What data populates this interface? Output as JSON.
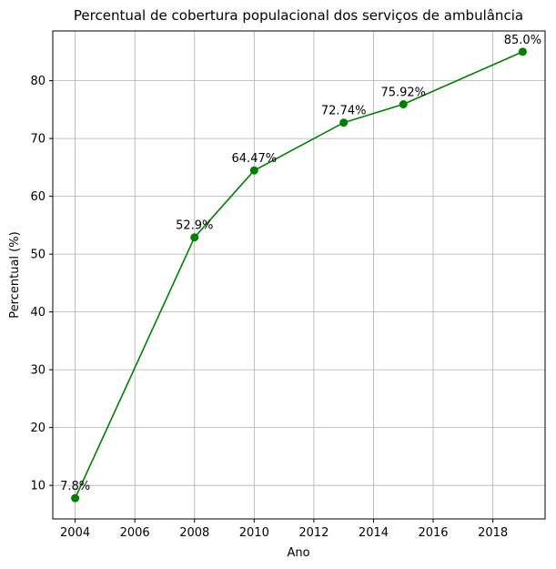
{
  "chart_data": {
    "type": "line",
    "title": "Percentual de cobertura populacional dos serviços de ambulância",
    "xlabel": "Ano",
    "ylabel": "Percentual (%)",
    "x": [
      2004,
      2008,
      2010,
      2013,
      2015,
      2019
    ],
    "series": [
      {
        "values": [
          7.8,
          52.9,
          64.47,
          72.74,
          75.92,
          85.0
        ],
        "labels": [
          "7.8%",
          "52.9%",
          "64.47%",
          "72.74%",
          "75.92%",
          "85.0%"
        ],
        "color": "#008000",
        "marker": "circle"
      }
    ],
    "xlim": [
      2003.25,
      2019.75
    ],
    "ylim": [
      4.2,
      88.6
    ],
    "xticks": [
      2004,
      2006,
      2008,
      2010,
      2012,
      2014,
      2016,
      2018
    ],
    "yticks": [
      10,
      20,
      30,
      40,
      50,
      60,
      70,
      80
    ],
    "grid": true
  }
}
